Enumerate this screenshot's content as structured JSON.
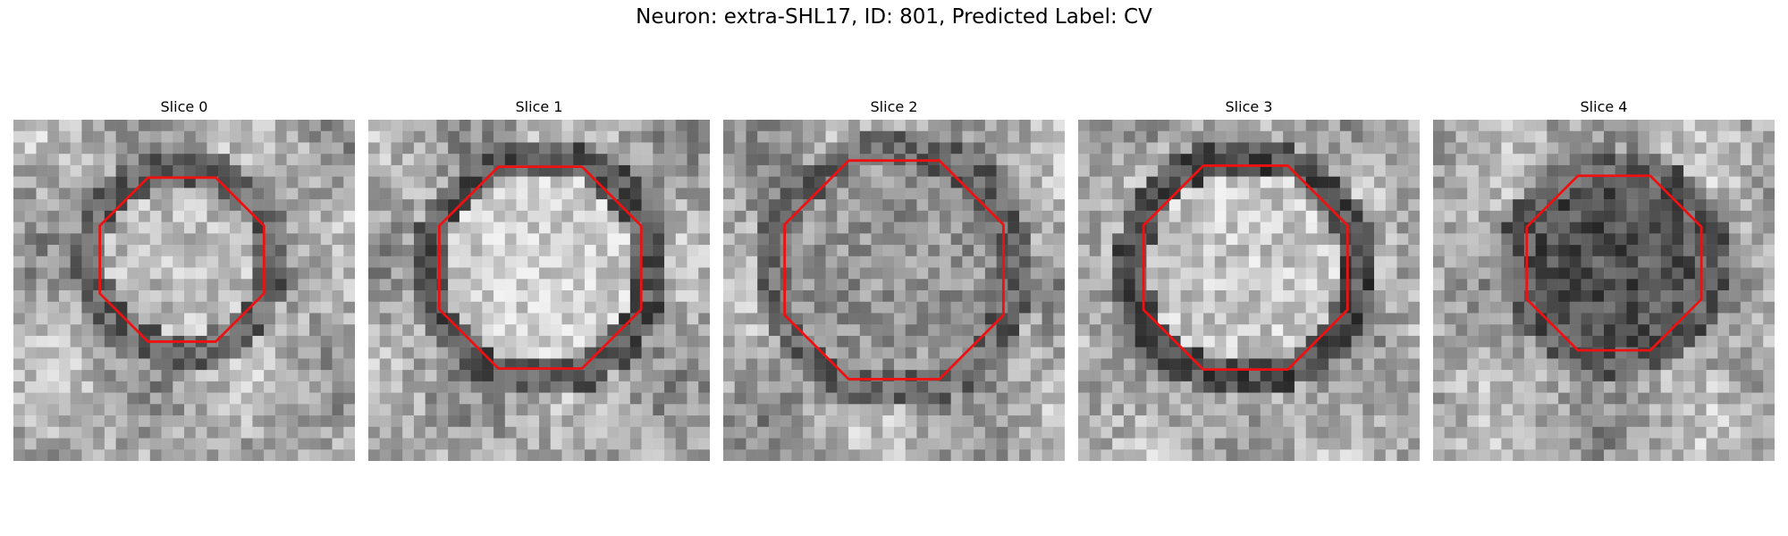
{
  "figure": {
    "title": "Neuron: extra-SHL17, ID: 801, Predicted Label: CV"
  },
  "panels": [
    {
      "title": "Slice 0",
      "inner": 0.74,
      "ring": 0.38,
      "seed": 11
    },
    {
      "title": "Slice 1",
      "inner": 0.82,
      "ring": 0.34,
      "seed": 23
    },
    {
      "title": "Slice 2",
      "inner": 0.58,
      "ring": 0.4,
      "seed": 37
    },
    {
      "title": "Slice 3",
      "inner": 0.78,
      "ring": 0.3,
      "seed": 53
    },
    {
      "title": "Slice 4",
      "inner": 0.32,
      "ring": 0.36,
      "seed": 71
    }
  ],
  "colors": {
    "contour": "#ee1111"
  }
}
